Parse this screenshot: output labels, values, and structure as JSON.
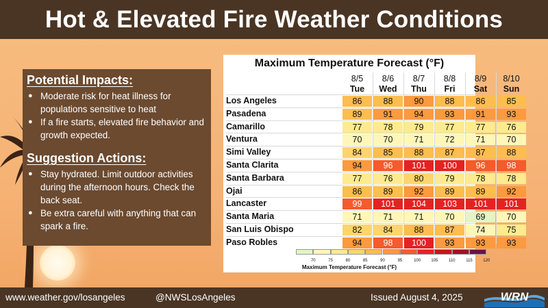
{
  "header": {
    "title": "Hot & Elevated Fire Weather Conditions"
  },
  "impacts": {
    "heading": "Potential Impacts:",
    "items": [
      "Moderate risk for heat illness for populations sensitive to heat",
      "If a fire starts, elevated fire behavior and growth expected."
    ]
  },
  "actions": {
    "heading": "Suggestion Actions:",
    "items": [
      "Stay hydrated. Limit outdoor activities during the afternoon hours. Check the back seat.",
      "Be extra careful with anything that can spark a fire."
    ]
  },
  "chart_data": {
    "type": "table",
    "title": "Maximum Temperature Forecast (°F)",
    "columns": [
      {
        "date": "8/5",
        "day": "Tue"
      },
      {
        "date": "8/6",
        "day": "Wed"
      },
      {
        "date": "8/7",
        "day": "Thu"
      },
      {
        "date": "8/8",
        "day": "Fri"
      },
      {
        "date": "8/9",
        "day": "Sat"
      },
      {
        "date": "8/10",
        "day": "Sun"
      }
    ],
    "rows": [
      {
        "city": "Los Angeles",
        "values": [
          86,
          88,
          90,
          88,
          86,
          85
        ]
      },
      {
        "city": "Pasadena",
        "values": [
          89,
          91,
          94,
          93,
          91,
          93
        ]
      },
      {
        "city": "Camarillo",
        "values": [
          77,
          78,
          79,
          77,
          77,
          76
        ]
      },
      {
        "city": "Ventura",
        "values": [
          70,
          70,
          71,
          72,
          71,
          70
        ]
      },
      {
        "city": "Simi Valley",
        "values": [
          84,
          85,
          88,
          87,
          87,
          88
        ]
      },
      {
        "city": "Santa Clarita",
        "values": [
          94,
          96,
          101,
          100,
          96,
          98
        ]
      },
      {
        "city": "Santa Barbara",
        "values": [
          77,
          76,
          80,
          79,
          78,
          78
        ]
      },
      {
        "city": "Ojai",
        "values": [
          86,
          89,
          92,
          89,
          89,
          92
        ]
      },
      {
        "city": "Lancaster",
        "values": [
          99,
          101,
          104,
          103,
          101,
          101
        ]
      },
      {
        "city": "Santa Maria",
        "values": [
          71,
          71,
          71,
          70,
          69,
          70
        ]
      },
      {
        "city": "San Luis Obispo",
        "values": [
          82,
          84,
          88,
          87,
          74,
          75
        ]
      },
      {
        "city": "Paso Robles",
        "values": [
          94,
          98,
          100,
          93,
          93,
          93
        ]
      }
    ],
    "legend": {
      "label": "Maximum Temperature Forecast (°F)",
      "ticks": [
        70,
        75,
        80,
        85,
        90,
        95,
        100,
        105,
        110,
        115,
        120
      ]
    },
    "color_scale": [
      {
        "min": 0,
        "max": 70,
        "color": "#e4f4c4"
      },
      {
        "min": 70,
        "max": 75,
        "color": "#fff6b8"
      },
      {
        "min": 75,
        "max": 80,
        "color": "#ffea8f"
      },
      {
        "min": 80,
        "max": 85,
        "color": "#fed56b"
      },
      {
        "min": 85,
        "max": 90,
        "color": "#fdbd4f"
      },
      {
        "min": 90,
        "max": 95,
        "color": "#fb9a3e"
      },
      {
        "min": 95,
        "max": 100,
        "color": "#f55b2c"
      },
      {
        "min": 100,
        "max": 105,
        "color": "#e32322"
      },
      {
        "min": 105,
        "max": 110,
        "color": "#c4161f"
      },
      {
        "min": 110,
        "max": 115,
        "color": "#a01224"
      },
      {
        "min": 115,
        "max": 200,
        "color": "#6e1048"
      }
    ]
  },
  "footer": {
    "url": "www.weather.gov/losangeles",
    "handle": "@NWSLosAngeles",
    "issued": "Issued August 4, 2025"
  },
  "logo": {
    "icon": "wrn-logo-icon",
    "text": "WRN"
  }
}
